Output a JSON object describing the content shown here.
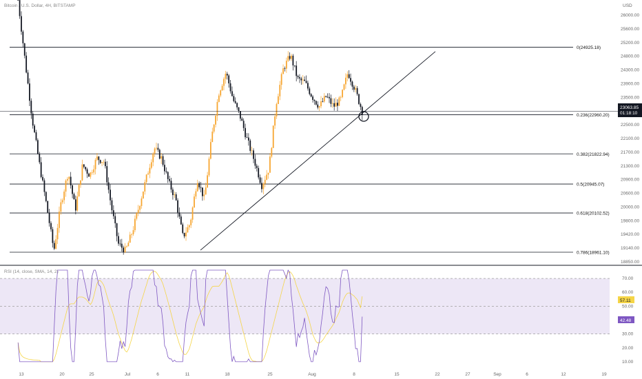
{
  "header": {
    "symbol_title": "Bitcoin / U.S. Dollar, 4H, BITSTAMP",
    "currency": "USD"
  },
  "price_axis": {
    "ticks": [
      "26000.00",
      "25600.00",
      "25200.00",
      "24800.00",
      "24300.00",
      "23900.00",
      "23500.00",
      "23100.00",
      "22500.00",
      "22100.00",
      "21700.00",
      "21300.00",
      "20900.00",
      "20600.00",
      "20000.00",
      "19800.00",
      "19420.00",
      "19140.00",
      "18850.00"
    ],
    "current_price": "23063.85",
    "countdown": "01:18:10",
    "current_price_color": "#131722"
  },
  "fib_levels": [
    {
      "label": "0(24925.18)",
      "price": 24925.18
    },
    {
      "label": "0.236(22960.20)",
      "price": 22960.2
    },
    {
      "label": "0.382(21822.94)",
      "price": 21822.94
    },
    {
      "label": "0.5(20945.07)",
      "price": 20945.07
    },
    {
      "label": "0.618(20102.52)",
      "price": 20102.52
    },
    {
      "label": "0.786(18961.10)",
      "price": 18961.1
    }
  ],
  "rsi_panel": {
    "legend": "RSI (14, close, SMA, 14, 2)",
    "ticks": [
      "70.00",
      "60.00",
      "50.00",
      "40.00",
      "30.00",
      "20.00",
      "10.00"
    ],
    "rsi_value": "42.48",
    "ma_value": "57.11",
    "rsi_color": "#7e57c2",
    "ma_color": "#f5d547",
    "band_color": "#ede7f6"
  },
  "time_axis": {
    "labels": [
      "13",
      "20",
      "25",
      "Jul",
      "6",
      "11",
      "18",
      "25",
      "Aug",
      "8",
      "15",
      "22",
      "27",
      "Sep",
      "6",
      "12",
      "19"
    ]
  },
  "colors": {
    "up_candle": "#f7a52f",
    "down_candle": "#131722",
    "level_line": "#131722"
  },
  "chart_data": {
    "type": "candlestick",
    "instrument": "Bitcoin / U.S. Dollar",
    "interval": "4H",
    "exchange": "BITSTAMP",
    "ylim": [
      18600,
      26300
    ],
    "fib_retracement": [
      {
        "ratio": 0,
        "price": 24925.18
      },
      {
        "ratio": 0.236,
        "price": 22960.2
      },
      {
        "ratio": 0.382,
        "price": 21822.94
      },
      {
        "ratio": 0.5,
        "price": 20945.07
      },
      {
        "ratio": 0.618,
        "price": 20102.52
      },
      {
        "ratio": 0.786,
        "price": 18961.1
      }
    ],
    "price_path": [
      26300,
      24500,
      22800,
      21500,
      20300,
      19000,
      20400,
      21300,
      20200,
      21500,
      21200,
      21700,
      21600,
      20300,
      19200,
      19000,
      19600,
      20400,
      21200,
      22000,
      21700,
      21000,
      20500,
      19400,
      19800,
      21100,
      20500,
      22300,
      23600,
      24200,
      23400,
      22900,
      22200,
      21600,
      20900,
      21400,
      23300,
      24300,
      24700,
      24000,
      23900,
      23500,
      23200,
      23500,
      23200,
      23400,
      24200,
      23700,
      23064
    ],
    "trendline": {
      "from": 19020,
      "to": 24800
    },
    "current_price": 23063.85,
    "rsi": {
      "upper_band": 70,
      "middle": 50,
      "lower_band": 30,
      "last": 42.48,
      "ma_last": 57.11
    }
  }
}
